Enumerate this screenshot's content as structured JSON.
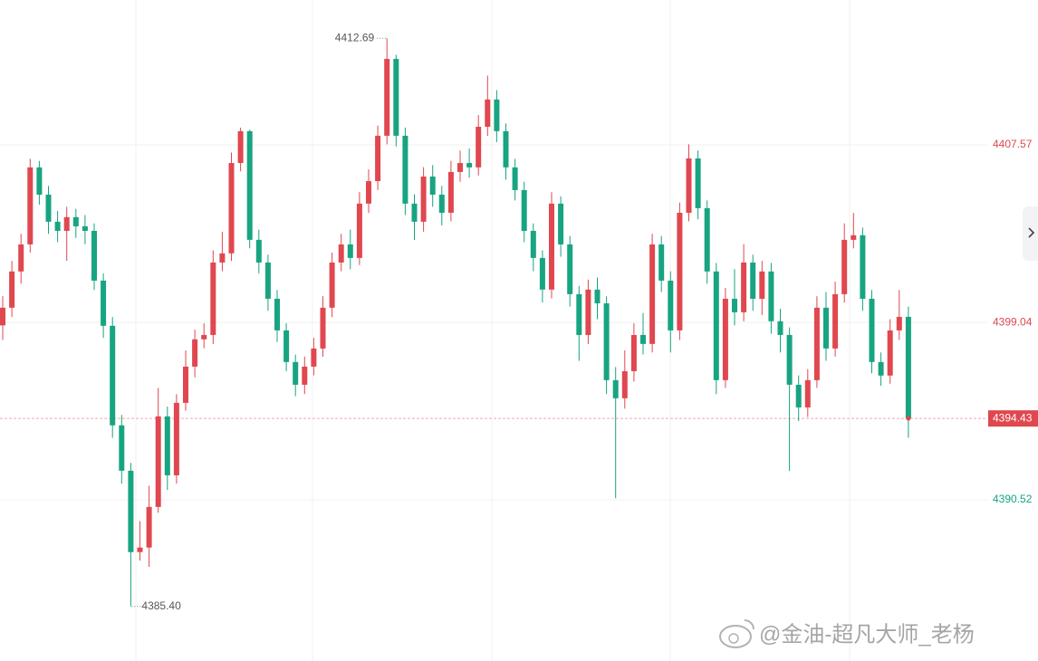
{
  "chart_data": {
    "type": "candlestick",
    "up_color": "#e0474f",
    "down_color": "#17a481",
    "ylim": [
      4382.78,
      4414.53
    ],
    "yticks": [
      4390.52,
      4399.04,
      4407.57
    ],
    "grid": true,
    "last_price": 4394.43,
    "extremes": [
      {
        "value": 4412.69,
        "label": "4412.69"
      },
      {
        "value": 4385.4,
        "label": "4385.40"
      }
    ],
    "watermark": "@金油-超凡大师_老杨",
    "ohlc": [
      [
        4398.9,
        4400.3,
        4398.2,
        4399.75
      ],
      [
        4399.75,
        4402.0,
        4399.3,
        4401.49
      ],
      [
        4401.49,
        4403.3,
        4400.9,
        4402.79
      ],
      [
        4402.79,
        4406.9,
        4402.4,
        4406.49
      ],
      [
        4406.49,
        4406.8,
        4404.7,
        4405.18
      ],
      [
        4405.18,
        4405.6,
        4403.3,
        4403.88
      ],
      [
        4403.88,
        4404.4,
        4402.9,
        4403.44
      ],
      [
        4403.44,
        4404.6,
        4402.0,
        4404.1
      ],
      [
        4404.1,
        4404.5,
        4403.1,
        4403.66
      ],
      [
        4403.66,
        4404.2,
        4402.8,
        4403.44
      ],
      [
        4403.44,
        4403.8,
        4400.6,
        4401.05
      ],
      [
        4401.05,
        4401.4,
        4398.3,
        4398.88
      ],
      [
        4398.88,
        4399.3,
        4393.5,
        4394.1
      ],
      [
        4394.1,
        4394.6,
        4391.3,
        4391.92
      ],
      [
        4391.92,
        4392.3,
        4385.4,
        4388.01
      ],
      [
        4388.01,
        4389.5,
        4387.6,
        4388.23
      ],
      [
        4388.23,
        4391.2,
        4387.3,
        4390.18
      ],
      [
        4390.18,
        4395.9,
        4389.9,
        4394.53
      ],
      [
        4394.53,
        4395.0,
        4391.0,
        4391.7
      ],
      [
        4391.7,
        4395.6,
        4391.3,
        4395.18
      ],
      [
        4395.18,
        4397.7,
        4394.8,
        4396.92
      ],
      [
        4396.92,
        4398.7,
        4396.4,
        4398.23
      ],
      [
        4398.23,
        4399.0,
        4397.8,
        4398.44
      ],
      [
        4398.44,
        4402.5,
        4398.0,
        4401.92
      ],
      [
        4401.92,
        4403.4,
        4401.5,
        4402.36
      ],
      [
        4402.36,
        4407.2,
        4402.0,
        4406.7
      ],
      [
        4406.7,
        4408.4,
        4406.3,
        4408.23
      ],
      [
        4408.23,
        4408.3,
        4402.6,
        4403.01
      ],
      [
        4403.01,
        4403.5,
        4401.4,
        4401.92
      ],
      [
        4401.92,
        4402.3,
        4399.6,
        4400.18
      ],
      [
        4400.18,
        4400.6,
        4398.1,
        4398.66
      ],
      [
        4398.66,
        4399.0,
        4396.7,
        4397.14
      ],
      [
        4397.14,
        4397.5,
        4395.5,
        4396.05
      ],
      [
        4396.05,
        4397.4,
        4395.6,
        4396.92
      ],
      [
        4396.92,
        4398.3,
        4396.5,
        4397.79
      ],
      [
        4397.79,
        4400.3,
        4397.4,
        4399.75
      ],
      [
        4399.75,
        4402.4,
        4399.3,
        4401.92
      ],
      [
        4401.92,
        4403.3,
        4401.5,
        4402.79
      ],
      [
        4402.79,
        4403.5,
        4401.6,
        4402.14
      ],
      [
        4402.14,
        4405.3,
        4401.8,
        4404.75
      ],
      [
        4404.75,
        4406.4,
        4404.3,
        4405.83
      ],
      [
        4405.83,
        4408.5,
        4405.4,
        4408.01
      ],
      [
        4408.01,
        4412.69,
        4407.6,
        4411.7
      ],
      [
        4411.7,
        4411.9,
        4407.5,
        4408.01
      ],
      [
        4408.01,
        4408.4,
        4404.2,
        4404.75
      ],
      [
        4404.75,
        4405.2,
        4403.0,
        4403.88
      ],
      [
        4403.88,
        4406.5,
        4403.4,
        4406.05
      ],
      [
        4406.05,
        4406.6,
        4404.6,
        4405.18
      ],
      [
        4405.18,
        4405.6,
        4403.7,
        4404.31
      ],
      [
        4404.31,
        4406.8,
        4403.9,
        4406.27
      ],
      [
        4406.27,
        4407.3,
        4405.8,
        4406.7
      ],
      [
        4406.7,
        4407.4,
        4406.0,
        4406.49
      ],
      [
        4406.49,
        4409.0,
        4406.1,
        4408.44
      ],
      [
        4408.44,
        4410.9,
        4408.0,
        4409.75
      ],
      [
        4409.75,
        4410.2,
        4407.7,
        4408.23
      ],
      [
        4408.23,
        4408.6,
        4405.9,
        4406.49
      ],
      [
        4406.49,
        4406.9,
        4404.9,
        4405.4
      ],
      [
        4405.4,
        4405.8,
        4402.9,
        4403.44
      ],
      [
        4403.44,
        4403.8,
        4401.5,
        4402.14
      ],
      [
        4402.14,
        4402.5,
        4400.0,
        4400.62
      ],
      [
        4400.62,
        4405.3,
        4400.2,
        4404.75
      ],
      [
        4404.75,
        4405.1,
        4402.2,
        4402.79
      ],
      [
        4402.79,
        4403.2,
        4399.8,
        4400.4
      ],
      [
        4400.4,
        4400.8,
        4397.2,
        4398.44
      ],
      [
        4398.44,
        4401.1,
        4398.0,
        4400.62
      ],
      [
        4400.62,
        4401.2,
        4399.2,
        4399.96
      ],
      [
        4399.96,
        4400.3,
        4395.6,
        4396.27
      ],
      [
        4396.27,
        4396.9,
        4390.6,
        4395.4
      ],
      [
        4395.4,
        4397.7,
        4394.9,
        4396.7
      ],
      [
        4396.7,
        4399.0,
        4396.2,
        4398.44
      ],
      [
        4398.44,
        4399.5,
        4397.5,
        4398.01
      ],
      [
        4398.01,
        4403.3,
        4397.6,
        4402.79
      ],
      [
        4402.79,
        4403.2,
        4400.5,
        4401.05
      ],
      [
        4401.05,
        4401.5,
        4397.6,
        4398.66
      ],
      [
        4398.66,
        4404.8,
        4398.2,
        4404.31
      ],
      [
        4404.31,
        4407.6,
        4403.9,
        4406.92
      ],
      [
        4406.92,
        4407.3,
        4404.0,
        4404.53
      ],
      [
        4404.53,
        4404.9,
        4400.9,
        4401.49
      ],
      [
        4401.49,
        4401.9,
        4395.6,
        4396.27
      ],
      [
        4396.27,
        4400.7,
        4395.9,
        4400.18
      ],
      [
        4400.18,
        4401.6,
        4398.9,
        4399.53
      ],
      [
        4399.53,
        4402.8,
        4399.1,
        4401.92
      ],
      [
        4401.92,
        4402.3,
        4399.6,
        4400.18
      ],
      [
        4400.18,
        4402.0,
        4399.4,
        4401.49
      ],
      [
        4401.49,
        4401.9,
        4398.5,
        4399.1
      ],
      [
        4399.1,
        4399.7,
        4397.6,
        4398.44
      ],
      [
        4398.44,
        4398.8,
        4391.9,
        4396.05
      ],
      [
        4396.05,
        4396.5,
        4394.3,
        4394.96
      ],
      [
        4394.96,
        4396.8,
        4394.5,
        4396.27
      ],
      [
        4396.27,
        4400.3,
        4395.9,
        4399.75
      ],
      [
        4399.75,
        4400.5,
        4397.2,
        4397.79
      ],
      [
        4397.79,
        4401.0,
        4397.4,
        4400.4
      ],
      [
        4400.4,
        4403.8,
        4400.0,
        4403.01
      ],
      [
        4403.01,
        4404.3,
        4402.6,
        4403.23
      ],
      [
        4403.23,
        4403.6,
        4399.6,
        4400.18
      ],
      [
        4400.18,
        4400.6,
        4396.6,
        4397.14
      ],
      [
        4397.14,
        4397.6,
        4396.0,
        4396.49
      ],
      [
        4396.49,
        4399.2,
        4396.1,
        4398.66
      ],
      [
        4398.66,
        4400.6,
        4398.2,
        4399.31
      ],
      [
        4399.31,
        4399.8,
        4393.5,
        4394.43
      ]
    ]
  }
}
